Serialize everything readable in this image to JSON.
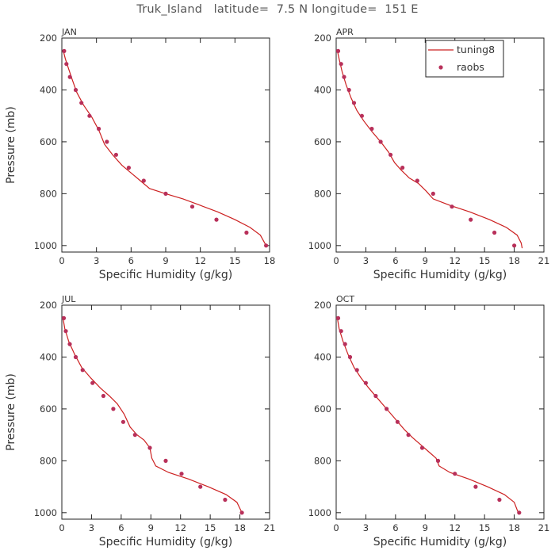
{
  "title": "Truk_Island   latitude=  7.5 N longitude=  151 E",
  "colors": {
    "model_line": "#cc2020",
    "obs_marker": "#b8305a",
    "axis": "#222222",
    "text": "#333333"
  },
  "legend": {
    "line_label": "tuning8",
    "marker_label": "raobs",
    "placement": "top-right of APR panel"
  },
  "chart_data": [
    {
      "type": "line",
      "panel_label": "JAN",
      "xlabel": "Specific Humidity (g/kg)",
      "ylabel": "Pressure (mb)",
      "xlim": [
        0,
        18
      ],
      "xticks": [
        0,
        3,
        6,
        9,
        12,
        15,
        18
      ],
      "ylim": [
        200,
        1025
      ],
      "yticks": [
        200,
        400,
        600,
        800,
        1000
      ],
      "y_inverted": true,
      "series": [
        {
          "name": "tuning8",
          "kind": "line",
          "x": [
            0.1,
            0.3,
            0.6,
            0.9,
            1.3,
            1.9,
            2.6,
            3.2,
            3.7,
            4.4,
            5.2,
            6.0,
            6.8,
            7.6,
            9.0,
            10.5,
            12.0,
            13.5,
            15.0,
            16.3,
            17.2,
            17.7
          ],
          "y": [
            245,
            280,
            320,
            360,
            410,
            460,
            505,
            555,
            610,
            650,
            690,
            720,
            750,
            780,
            800,
            820,
            845,
            870,
            900,
            930,
            960,
            1000
          ]
        },
        {
          "name": "raobs",
          "kind": "scatter",
          "x": [
            0.2,
            0.4,
            0.7,
            1.2,
            1.7,
            2.4,
            3.2,
            3.9,
            4.7,
            5.8,
            7.1,
            9.0,
            11.3,
            13.4,
            16.0,
            17.7
          ],
          "y": [
            250,
            300,
            350,
            400,
            450,
            500,
            550,
            600,
            650,
            700,
            750,
            800,
            850,
            900,
            950,
            1000
          ]
        }
      ]
    },
    {
      "type": "line",
      "panel_label": "APR",
      "xlabel": "Specific Humidity (g/kg)",
      "ylabel": "",
      "xlim": [
        0,
        21
      ],
      "xticks": [
        0,
        3,
        6,
        9,
        12,
        15,
        18,
        21
      ],
      "ylim": [
        200,
        1025
      ],
      "yticks": [
        200,
        400,
        600,
        800,
        1000
      ],
      "y_inverted": true,
      "series": [
        {
          "name": "tuning8",
          "kind": "line",
          "x": [
            0.1,
            0.3,
            0.6,
            1.0,
            1.5,
            2.1,
            2.8,
            3.6,
            4.5,
            5.3,
            5.9,
            6.6,
            7.4,
            8.3,
            9.1,
            9.8,
            11.5,
            13.5,
            15.5,
            17.2,
            18.3,
            18.7,
            18.8
          ],
          "y": [
            245,
            280,
            330,
            380,
            430,
            480,
            520,
            560,
            600,
            640,
            680,
            710,
            740,
            760,
            790,
            820,
            845,
            870,
            900,
            930,
            960,
            990,
            1010
          ]
        },
        {
          "name": "raobs",
          "kind": "scatter",
          "x": [
            0.2,
            0.5,
            0.8,
            1.3,
            1.8,
            2.6,
            3.6,
            4.5,
            5.5,
            6.7,
            8.2,
            9.8,
            11.7,
            13.6,
            16.0,
            18.0
          ],
          "y": [
            250,
            300,
            350,
            400,
            450,
            500,
            550,
            600,
            650,
            700,
            750,
            800,
            850,
            900,
            950,
            1000
          ]
        }
      ]
    },
    {
      "type": "line",
      "panel_label": "JUL",
      "xlabel": "Specific Humidity (g/kg)",
      "ylabel": "Pressure (mb)",
      "xlim": [
        0,
        21
      ],
      "xticks": [
        0,
        3,
        6,
        9,
        12,
        15,
        18,
        21
      ],
      "ylim": [
        200,
        1025
      ],
      "yticks": [
        200,
        400,
        600,
        800,
        1000
      ],
      "y_inverted": true,
      "series": [
        {
          "name": "tuning8",
          "kind": "line",
          "x": [
            0.1,
            0.3,
            0.7,
            1.3,
            2.0,
            2.9,
            3.9,
            4.8,
            5.6,
            6.3,
            6.9,
            7.6,
            8.3,
            8.9,
            9.1,
            9.5,
            10.8,
            12.8,
            14.8,
            16.6,
            17.7,
            18.2
          ],
          "y": [
            245,
            290,
            340,
            390,
            440,
            480,
            520,
            550,
            580,
            620,
            670,
            700,
            720,
            750,
            790,
            820,
            845,
            870,
            900,
            930,
            960,
            1000
          ]
        },
        {
          "name": "raobs",
          "kind": "scatter",
          "x": [
            0.2,
            0.4,
            0.8,
            1.4,
            2.1,
            3.1,
            4.2,
            5.2,
            6.2,
            7.4,
            8.9,
            10.5,
            12.1,
            14.0,
            16.5,
            18.2
          ],
          "y": [
            250,
            300,
            350,
            400,
            450,
            500,
            550,
            600,
            650,
            700,
            750,
            800,
            850,
            900,
            950,
            1000
          ]
        }
      ]
    },
    {
      "type": "line",
      "panel_label": "OCT",
      "xlabel": "Specific Humidity (g/kg)",
      "ylabel": "",
      "xlim": [
        0,
        21
      ],
      "xticks": [
        0,
        3,
        6,
        9,
        12,
        15,
        18,
        21
      ],
      "ylim": [
        200,
        1025
      ],
      "yticks": [
        200,
        400,
        600,
        800,
        1000
      ],
      "y_inverted": true,
      "series": [
        {
          "name": "tuning8",
          "kind": "line",
          "x": [
            0.1,
            0.3,
            0.7,
            1.2,
            1.8,
            2.5,
            3.3,
            4.2,
            5.1,
            6.0,
            6.9,
            7.7,
            8.6,
            9.5,
            10.1,
            10.4,
            11.5,
            13.4,
            15.3,
            17.0,
            18.0,
            18.4
          ],
          "y": [
            245,
            290,
            340,
            390,
            440,
            480,
            520,
            560,
            600,
            640,
            680,
            710,
            740,
            770,
            790,
            820,
            845,
            870,
            900,
            930,
            960,
            1000
          ]
        },
        {
          "name": "raobs",
          "kind": "scatter",
          "x": [
            0.2,
            0.5,
            0.9,
            1.4,
            2.1,
            3.0,
            4.0,
            5.1,
            6.2,
            7.3,
            8.7,
            10.3,
            12.0,
            14.1,
            16.5,
            18.5
          ],
          "y": [
            250,
            300,
            350,
            400,
            450,
            500,
            550,
            600,
            650,
            700,
            750,
            800,
            850,
            900,
            950,
            1000
          ]
        }
      ]
    }
  ]
}
